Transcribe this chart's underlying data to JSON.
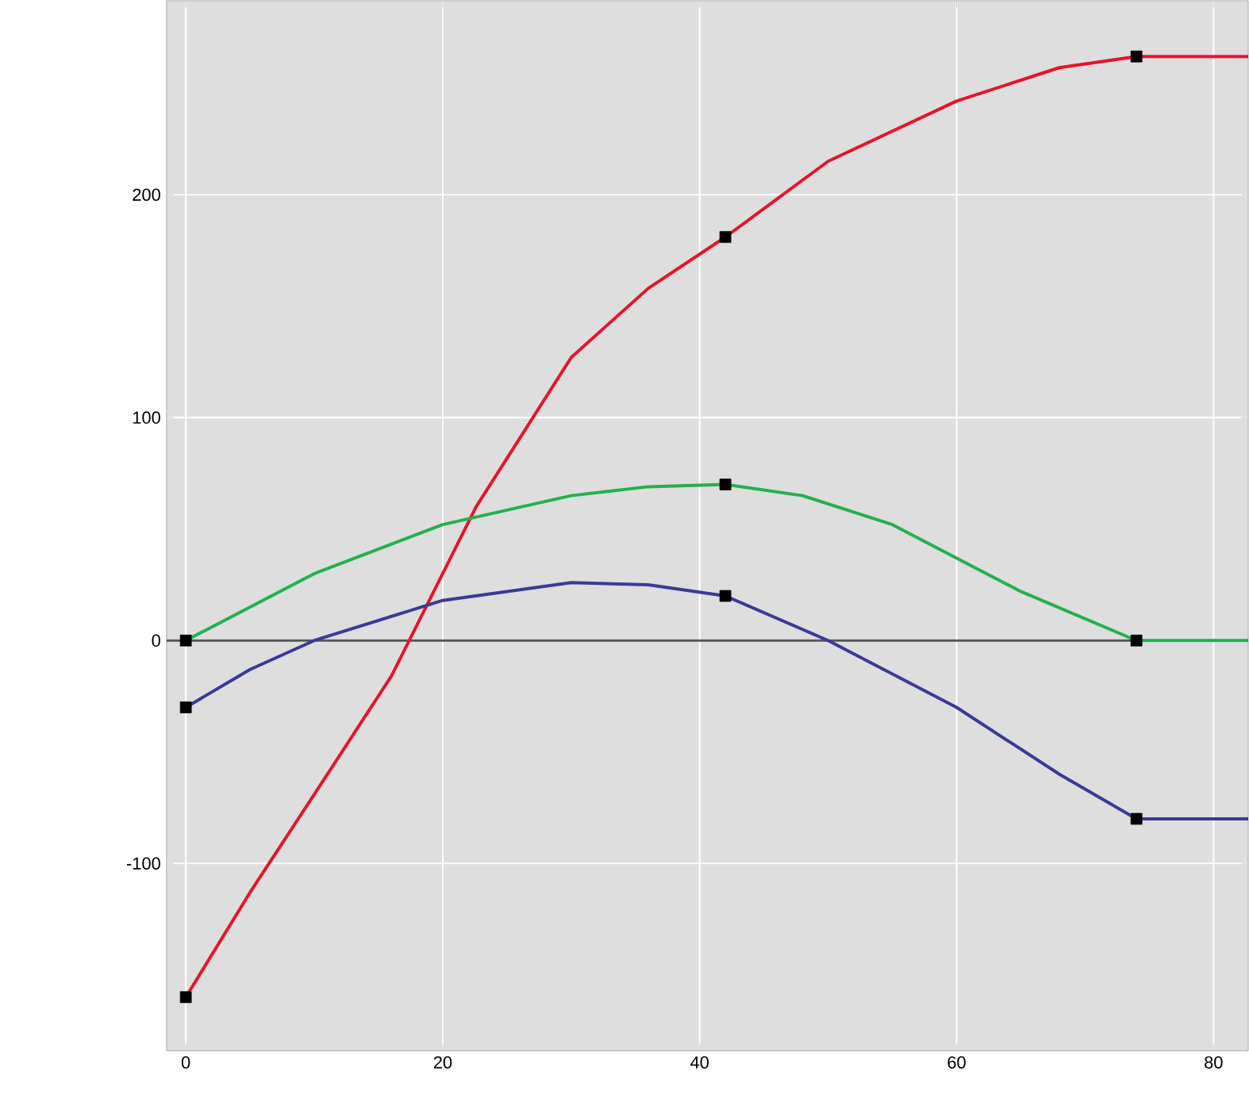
{
  "chart_data": {
    "type": "line",
    "xlim": [
      -1.5,
      82.7
    ],
    "ylim": [
      -184,
      287
    ],
    "xticks": [
      0,
      20,
      40,
      60,
      80
    ],
    "yticks": [
      -100,
      0,
      100,
      200
    ],
    "grid": true,
    "marker": "none",
    "line_style": "solid",
    "ref_lines": [
      {
        "axis": "y",
        "value": 0,
        "color": "#555555"
      }
    ],
    "series": [
      {
        "color": "#e8132b",
        "x": [
          0,
          5,
          10,
          16,
          22.6,
          30,
          36,
          42,
          50,
          60,
          68,
          74,
          82.7
        ],
        "values": [
          -160,
          -113,
          -69,
          -16,
          60,
          127,
          158,
          181,
          215,
          242,
          257,
          262,
          262
        ]
      },
      {
        "color": "#22b14c",
        "x": [
          0,
          10,
          20,
          30,
          36,
          42,
          48,
          55,
          65,
          74,
          82.7
        ],
        "values": [
          0,
          30,
          52,
          65,
          69,
          70,
          65,
          52,
          22,
          0,
          0
        ]
      },
      {
        "color": "#3a3a9a",
        "x": [
          0,
          5,
          10,
          20,
          30,
          36,
          42,
          50,
          60,
          68,
          74,
          82.7
        ],
        "values": [
          -30,
          -13,
          0,
          18,
          26,
          25,
          20,
          0,
          -30,
          -60,
          -80,
          -80
        ]
      },
      {
        "type": "scatter",
        "color": "#000000",
        "marker": "square",
        "x": [
          0,
          42,
          74,
          0,
          42,
          74,
          0,
          42,
          74
        ],
        "values": [
          -160,
          181,
          262,
          0,
          70,
          0,
          -30,
          20,
          -80
        ]
      }
    ]
  }
}
